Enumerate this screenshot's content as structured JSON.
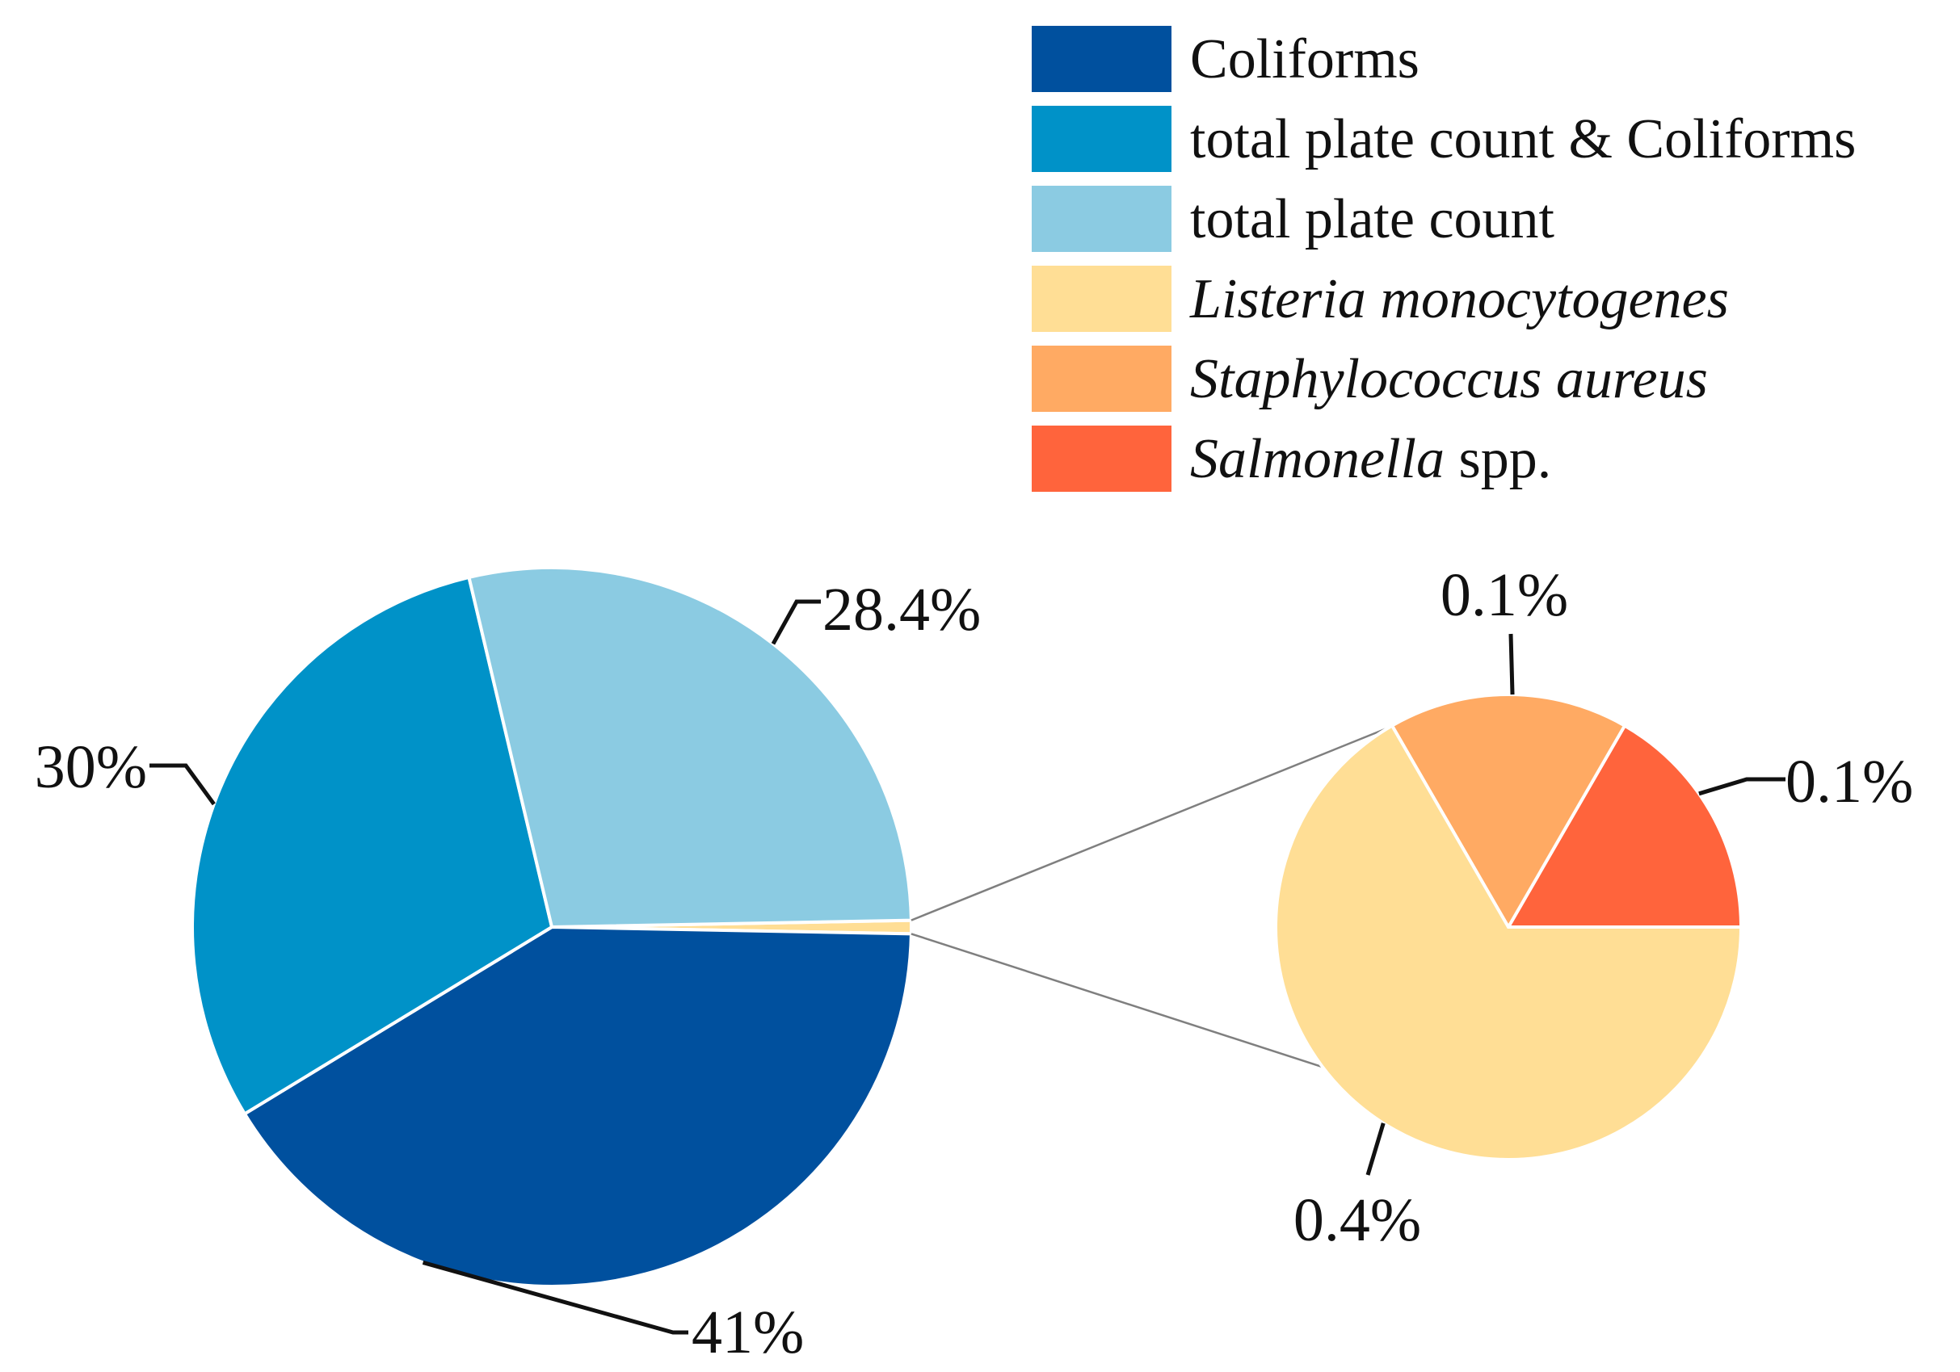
{
  "chart_data": [
    {
      "type": "pie",
      "role": "main",
      "slices": [
        {
          "name": "Coliforms",
          "value": 41,
          "label": "41%",
          "color": "#00509E"
        },
        {
          "name": "total plate count & Coliforms",
          "value": 30,
          "label": "30%",
          "color": "#0092C8"
        },
        {
          "name": "total plate count",
          "value": 28.4,
          "label": "28.4%",
          "color": "#8BCBE2"
        },
        {
          "name": "Listeria monocytogenes + Staphylococcus aureus + Salmonella spp.",
          "value": 0.6,
          "label": "",
          "color": "#FFDE95"
        }
      ]
    },
    {
      "type": "pie",
      "role": "breakout",
      "slices": [
        {
          "name": "Listeria monocytogenes",
          "value": 0.4,
          "label": "0.4%",
          "color": "#FFDE95"
        },
        {
          "name": "Staphylococcus aureus",
          "value": 0.1,
          "label": "0.1%",
          "color": "#FFAA63"
        },
        {
          "name": "Salmonella spp.",
          "value": 0.1,
          "label": "0.1%",
          "color": "#FF643C"
        }
      ]
    }
  ],
  "legend": {
    "placement": "top-right",
    "items": [
      {
        "text": "Coliforms",
        "italic": "",
        "rest": "Coliforms",
        "color": "#00509E"
      },
      {
        "text": "total plate count & Coliforms",
        "italic": "",
        "rest": "total plate count & Coliforms",
        "color": "#0092C8"
      },
      {
        "text": "total plate count",
        "italic": "",
        "rest": "total plate count",
        "color": "#8BCBE2"
      },
      {
        "text": "Listeria monocytogenes",
        "italic": "Listeria monocytogenes",
        "rest": "",
        "color": "#FFDE95"
      },
      {
        "text": "Staphylococcus aureus",
        "italic": "Staphylococcus aureus",
        "rest": "",
        "color": "#FFAA63"
      },
      {
        "text": "Salmonella spp.",
        "italic": "Salmonella",
        "rest": " spp.",
        "color": "#FF643C"
      }
    ]
  }
}
